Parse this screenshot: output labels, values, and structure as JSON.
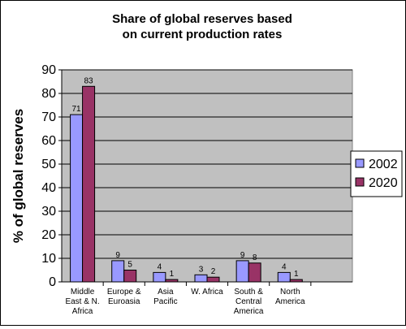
{
  "chart_data": {
    "type": "bar",
    "title": [
      "Share of global reserves based",
      "on current production rates"
    ],
    "xlabel": "",
    "ylabel": "% of global reserves",
    "ylim": [
      0,
      90
    ],
    "yticks": [
      0,
      10,
      20,
      30,
      40,
      50,
      60,
      70,
      80,
      90
    ],
    "grid": true,
    "legend_position": "right",
    "categories": [
      [
        "Middle",
        "East & N.",
        "Africa"
      ],
      [
        "Europe &",
        "Euroasia"
      ],
      [
        "Asia",
        "Pacific"
      ],
      [
        "W. Africa"
      ],
      [
        "South &",
        "Central",
        "America"
      ],
      [
        "North",
        "America"
      ],
      [
        ""
      ]
    ],
    "series": [
      {
        "name": "2002",
        "color": "#9999ff",
        "values": [
          71,
          9,
          4,
          3,
          9,
          4,
          null
        ]
      },
      {
        "name": "2020",
        "color": "#993366",
        "values": [
          83,
          5,
          1,
          2,
          8,
          1,
          null
        ]
      }
    ],
    "plot_background": "#c0c0c0"
  }
}
